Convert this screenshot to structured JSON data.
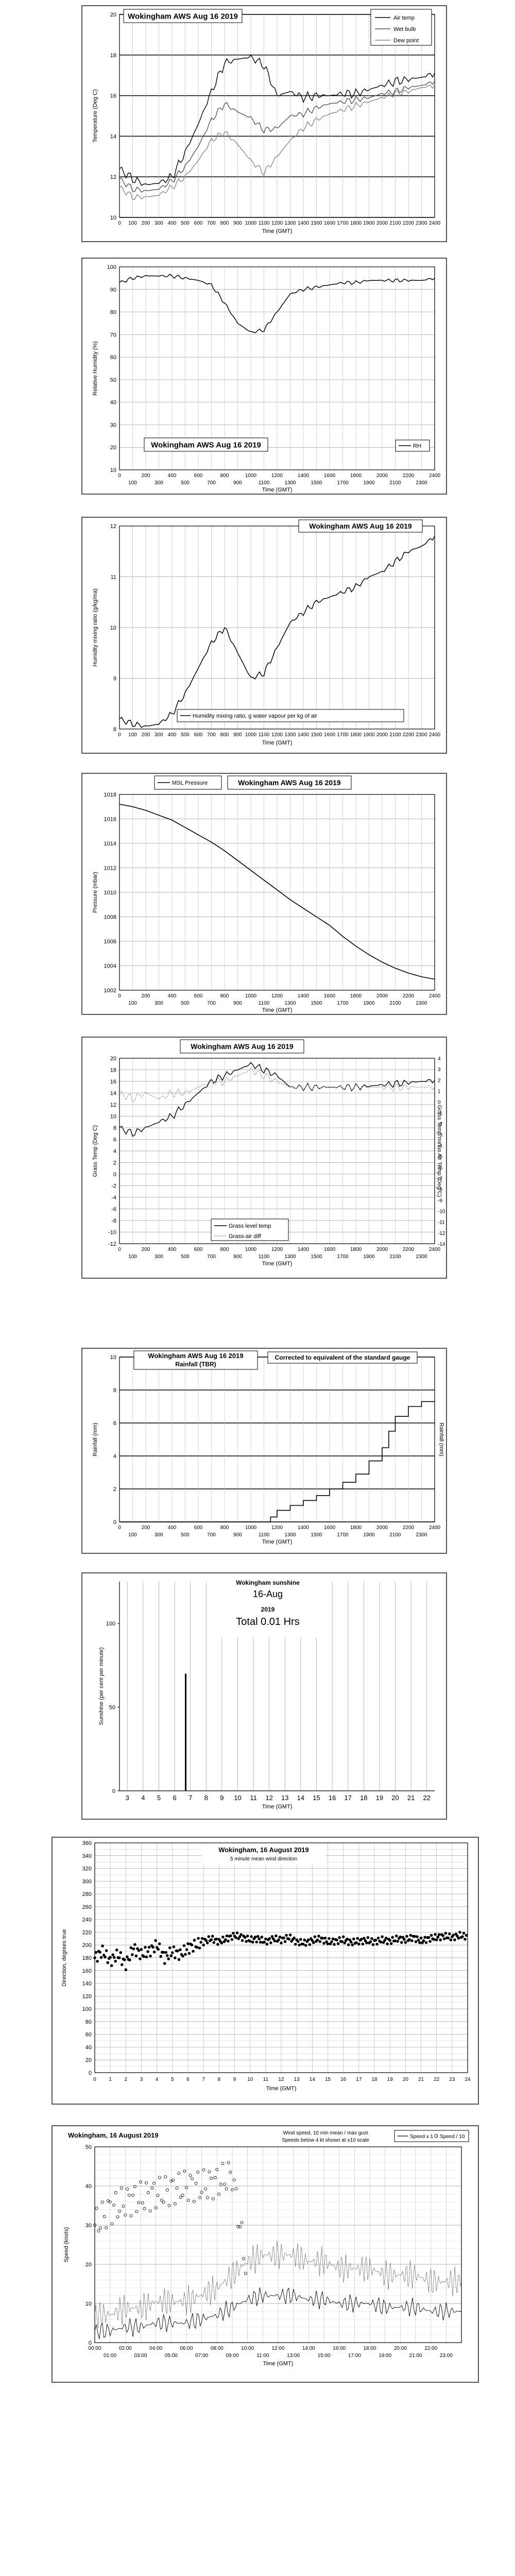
{
  "panels": [
    {
      "id": "temp",
      "title": "Wokingham AWS Aug 16 2019",
      "ylabel": "Temperature (Deg C)",
      "xlabel": "Time (GMT)",
      "yticks": [
        "10",
        "12",
        "14",
        "16",
        "18",
        "20"
      ],
      "xticks_top": [
        "0",
        "100",
        "200",
        "300",
        "400",
        "500",
        "600",
        "700",
        "800",
        "900",
        "1000",
        "1100",
        "1200",
        "1300",
        "1400",
        "1500",
        "1600",
        "1700",
        "1800",
        "1900",
        "2000",
        "2100",
        "2200",
        "2300",
        "2400"
      ],
      "legend": [
        "Air temp",
        "Wet bulb",
        "Dew point"
      ]
    },
    {
      "id": "rh",
      "title": "Wokingham AWS Aug 16 2019",
      "ylabel": "Relative Humidity (%)",
      "xlabel": "Time (GMT)",
      "yticks": [
        "10",
        "20",
        "30",
        "40",
        "50",
        "60",
        "70",
        "80",
        "90",
        "100"
      ],
      "xticks_top": [
        "0",
        "200",
        "400",
        "600",
        "800",
        "1000",
        "1200",
        "1400",
        "1600",
        "1800",
        "2000",
        "2200",
        "2400"
      ],
      "xticks_bottom": [
        "100",
        "300",
        "500",
        "700",
        "900",
        "1100",
        "1300",
        "1500",
        "1700",
        "1900",
        "2100",
        "2300"
      ],
      "legend": [
        "RH"
      ]
    },
    {
      "id": "hmr",
      "title": "Wokingham AWS Aug 16 2019",
      "ylabel": "Humidity mixing ratio (g/kg/ma)",
      "xlabel": "Time (GMT)",
      "yticks": [
        "8",
        "9",
        "10",
        "11",
        "12"
      ],
      "xticks_top": [
        "0",
        "100",
        "200",
        "300",
        "400",
        "500",
        "600",
        "700",
        "800",
        "900",
        "1000",
        "1100",
        "1200",
        "1300",
        "1400",
        "1500",
        "1600",
        "1700",
        "1800",
        "1900",
        "2000",
        "2100",
        "2200",
        "2300",
        "2400"
      ],
      "legend": [
        "Humidity mixing ratio, g water vapour per kg of air"
      ]
    },
    {
      "id": "press",
      "title": "Wokingham AWS Aug 16 2019",
      "ylabel": "Pressure (mbar)",
      "xlabel": "Time (GMT)",
      "yticks": [
        "1002",
        "1004",
        "1006",
        "1008",
        "1010",
        "1012",
        "1014",
        "1016",
        "1018"
      ],
      "xticks_top": [
        "0",
        "200",
        "400",
        "600",
        "800",
        "1000",
        "1200",
        "1400",
        "1600",
        "1800",
        "2000",
        "2200",
        "2400"
      ],
      "xticks_bottom": [
        "100",
        "300",
        "500",
        "700",
        "900",
        "1100",
        "1300",
        "1500",
        "1700",
        "1900",
        "2100",
        "2300"
      ],
      "legend": [
        "MSL Pressure"
      ]
    },
    {
      "id": "grass",
      "title": "Wokingham AWS Aug 16 2019",
      "ylabel": "Grass Temp (Deg C)",
      "ylabel_right": "Grass Temp minus Air Temp (Deg C)",
      "xlabel": "Time (GMT)",
      "yticks": [
        "-12",
        "-10",
        "-8",
        "-6",
        "-4",
        "-2",
        "0",
        "2",
        "4",
        "6",
        "8",
        "10",
        "12",
        "14",
        "16",
        "18",
        "20"
      ],
      "yticks_right": [
        "-14",
        "-12",
        "-11",
        "-10",
        "-9",
        "-8",
        "-7",
        "-6",
        "-5",
        "-4",
        "-3",
        "-2",
        "-1",
        "0",
        "1",
        "2",
        "3",
        "4"
      ],
      "xticks_top": [
        "0",
        "200",
        "400",
        "600",
        "800",
        "1000",
        "1200",
        "1400",
        "1600",
        "1800",
        "2000",
        "2200",
        "2400"
      ],
      "xticks_bottom": [
        "100",
        "300",
        "500",
        "700",
        "900",
        "1100",
        "1300",
        "1500",
        "1700",
        "1900",
        "2100",
        "2300"
      ],
      "legend": [
        "Grass level temp",
        "Grass-air diff"
      ]
    },
    {
      "id": "rain",
      "title": "Wokingham AWS Aug 16 2019",
      "subtitle": "Rainfall (TBR)",
      "note": "Corrected to equivalent of the standard gauge",
      "ylabel": "Rainfall (mm)",
      "ylabel_right": "Rainfall (mm)",
      "xlabel": "Time (GMT)",
      "yticks": [
        "0",
        "2",
        "4",
        "6",
        "8",
        "10"
      ],
      "xticks_top": [
        "0",
        "200",
        "400",
        "600",
        "800",
        "1000",
        "1200",
        "1400",
        "1600",
        "1800",
        "2000",
        "2200",
        "2400"
      ],
      "xticks_bottom": [
        "100",
        "300",
        "500",
        "700",
        "900",
        "1100",
        "1300",
        "1500",
        "1700",
        "1900",
        "2100",
        "2300"
      ]
    },
    {
      "id": "sun",
      "title": "Wokingham sunshine",
      "date": "16-Aug",
      "year": "2019",
      "total": "Total 0.01 Hrs",
      "ylabel": "Sunshine (per cent per minute)",
      "xlabel": "Time (GMT)",
      "yticks": [
        "0",
        "50",
        "100"
      ],
      "xticks": [
        "3",
        "4",
        "5",
        "6",
        "7",
        "8",
        "9",
        "10",
        "11",
        "12",
        "13",
        "14",
        "15",
        "16",
        "17",
        "18",
        "19",
        "20",
        "21",
        "22"
      ]
    },
    {
      "id": "wdir",
      "title": "Wokingham,   16 August 2019",
      "subtitle": "5 minute mean wind direction",
      "ylabel": "Direction, degrees true",
      "xlabel": "Time (GMT)",
      "yticks": [
        "0",
        "20",
        "40",
        "60",
        "80",
        "100",
        "120",
        "140",
        "160",
        "180",
        "200",
        "220",
        "240",
        "260",
        "280",
        "300",
        "320",
        "340",
        "360"
      ],
      "xticks": [
        "0",
        "1",
        "2",
        "3",
        "4",
        "5",
        "6",
        "7",
        "8",
        "9",
        "10",
        "11",
        "12",
        "13",
        "14",
        "15",
        "16",
        "17",
        "18",
        "19",
        "20",
        "21",
        "22",
        "23",
        "24"
      ]
    },
    {
      "id": "wspd",
      "title": "Wokingham,   16 August 2019",
      "subtitle": "Wind speed, 10 min mean / max gust",
      "subtitle2": "Speeds below 4 kt shown at x10 scale",
      "ylabel": "Speed (knots)",
      "xlabel": "Time (GMT)",
      "yticks": [
        "0",
        "10",
        "20",
        "30",
        "40",
        "50"
      ],
      "xticks_top": [
        "00:00",
        "02:00",
        "04:00",
        "06:00",
        "08:00",
        "10:00",
        "12:00",
        "14:00",
        "16:00",
        "18:00",
        "20:00",
        "22:00"
      ],
      "xticks_bottom": [
        "01:00",
        "03:00",
        "05:00",
        "07:00",
        "09:00",
        "11:00",
        "13:00",
        "15:00",
        "17:00",
        "19:00",
        "21:00",
        "23:00"
      ],
      "legend": [
        "Speed x 1",
        "Speed / 10"
      ]
    }
  ],
  "chart_data": [
    {
      "type": "line",
      "title": "Wokingham AWS Aug 16 2019",
      "xlabel": "Time (GMT)",
      "ylabel": "Temperature (Deg C)",
      "xlim": [
        0,
        2400
      ],
      "ylim": [
        10,
        20
      ],
      "x": [
        0,
        100,
        200,
        300,
        400,
        500,
        600,
        700,
        800,
        900,
        1000,
        1100,
        1200,
        1300,
        1400,
        1500,
        1600,
        1700,
        1800,
        1900,
        2000,
        2100,
        2200,
        2300,
        2400
      ],
      "series": [
        {
          "name": "Air temp",
          "values": [
            12.4,
            11.9,
            11.6,
            11.7,
            12.0,
            13.2,
            14.6,
            16.2,
            17.6,
            17.8,
            17.9,
            17.5,
            16.0,
            16.2,
            15.9,
            16.0,
            16.0,
            16.1,
            16.1,
            16.3,
            16.5,
            16.7,
            16.8,
            16.9,
            17.1
          ]
        },
        {
          "name": "Wet bulb",
          "values": [
            11.9,
            11.4,
            11.3,
            11.4,
            11.8,
            12.5,
            13.5,
            14.8,
            15.6,
            15.2,
            14.9,
            14.3,
            14.4,
            15.0,
            15.1,
            15.4,
            15.6,
            15.7,
            15.8,
            15.9,
            16.1,
            16.2,
            16.4,
            16.5,
            16.7
          ]
        },
        {
          "name": "Dew point",
          "values": [
            11.5,
            11.0,
            11.0,
            11.1,
            11.5,
            12.0,
            12.8,
            13.8,
            14.2,
            13.6,
            12.8,
            12.2,
            13.0,
            13.8,
            14.4,
            14.8,
            15.1,
            15.3,
            15.5,
            15.7,
            15.9,
            16.1,
            16.2,
            16.4,
            16.5
          ]
        }
      ]
    },
    {
      "type": "line",
      "title": "Wokingham AWS Aug 16 2019",
      "xlabel": "Time (GMT)",
      "ylabel": "Relative Humidity (%)",
      "xlim": [
        0,
        2400
      ],
      "ylim": [
        10,
        100
      ],
      "x": [
        0,
        100,
        200,
        300,
        400,
        500,
        600,
        700,
        800,
        900,
        1000,
        1100,
        1200,
        1300,
        1400,
        1500,
        1600,
        1700,
        1800,
        1900,
        2000,
        2100,
        2200,
        2300,
        2400
      ],
      "series": [
        {
          "name": "RH",
          "values": [
            93,
            95,
            96,
            96,
            96,
            95,
            94,
            92,
            84,
            75,
            71,
            72,
            80,
            88,
            90,
            91,
            92,
            93,
            93,
            94,
            94,
            94,
            94,
            94,
            95
          ]
        }
      ]
    },
    {
      "type": "line",
      "title": "Wokingham AWS Aug 16 2019",
      "xlabel": "Time (GMT)",
      "ylabel": "Humidity mixing ratio (g/kg/ma)",
      "xlim": [
        0,
        2400
      ],
      "ylim": [
        8,
        12
      ],
      "x": [
        0,
        100,
        200,
        300,
        400,
        500,
        600,
        700,
        800,
        900,
        1000,
        1100,
        1200,
        1300,
        1400,
        1500,
        1600,
        1700,
        1800,
        1900,
        2000,
        2100,
        2200,
        2300,
        2400
      ],
      "series": [
        {
          "name": "Humidity mixing ratio, g water vapour per kg of air",
          "values": [
            8.2,
            8.1,
            8.05,
            8.1,
            8.3,
            8.7,
            9.2,
            9.7,
            10.0,
            9.5,
            9.0,
            9.1,
            9.6,
            10.1,
            10.3,
            10.5,
            10.6,
            10.7,
            10.8,
            11.0,
            11.1,
            11.3,
            11.5,
            11.6,
            11.8
          ]
        }
      ]
    },
    {
      "type": "line",
      "title": "Wokingham AWS Aug 16 2019",
      "xlabel": "Time (GMT)",
      "ylabel": "Pressure (mbar)",
      "xlim": [
        0,
        2400
      ],
      "ylim": [
        1002,
        1018
      ],
      "x": [
        0,
        100,
        200,
        300,
        400,
        500,
        600,
        700,
        800,
        900,
        1000,
        1100,
        1200,
        1300,
        1400,
        1500,
        1600,
        1700,
        1800,
        1900,
        2000,
        2100,
        2200,
        2300,
        2400
      ],
      "series": [
        {
          "name": "MSL Pressure",
          "values": [
            1017.2,
            1017.0,
            1016.7,
            1016.3,
            1015.9,
            1015.3,
            1014.7,
            1014.1,
            1013.4,
            1012.6,
            1011.8,
            1011.0,
            1010.2,
            1009.4,
            1008.7,
            1008.0,
            1007.3,
            1006.4,
            1005.6,
            1004.9,
            1004.3,
            1003.8,
            1003.4,
            1003.1,
            1002.9
          ]
        }
      ]
    },
    {
      "type": "line",
      "title": "Wokingham AWS Aug 16 2019",
      "xlabel": "Time (GMT)",
      "ylabel": "Grass Temp (Deg C)",
      "xlim": [
        0,
        2400
      ],
      "ylim": [
        -12,
        20
      ],
      "x": [
        0,
        100,
        200,
        300,
        400,
        500,
        600,
        700,
        800,
        900,
        1000,
        1100,
        1200,
        1300,
        1400,
        1500,
        1600,
        1700,
        1800,
        1900,
        2000,
        2100,
        2200,
        2300,
        2400
      ],
      "series": [
        {
          "name": "Grass level temp",
          "values": [
            8,
            7,
            8,
            9,
            10,
            12,
            14,
            16,
            17,
            18,
            19,
            18,
            17,
            15,
            15,
            15,
            15,
            15,
            15,
            15.2,
            15.4,
            15.6,
            15.8,
            16,
            16.2
          ]
        },
        {
          "name": "Grass-air diff",
          "values": [
            -1,
            -2,
            -1,
            -2,
            -1,
            -1,
            0,
            1,
            1,
            2,
            3,
            2,
            1,
            0,
            0,
            0,
            0,
            0,
            0,
            0,
            0,
            0,
            0,
            0,
            0
          ]
        }
      ]
    },
    {
      "type": "line",
      "title": "Wokingham AWS Aug 16 2019",
      "xlabel": "Time (GMT)",
      "ylabel": "Rainfall (mm)",
      "xlim": [
        0,
        2400
      ],
      "ylim": [
        0,
        10
      ],
      "x": [
        0,
        1100,
        1150,
        1200,
        1300,
        1400,
        1500,
        1600,
        1700,
        1800,
        1900,
        2000,
        2050,
        2100,
        2200,
        2300,
        2400
      ],
      "series": [
        {
          "name": "Rainfall (TBR)",
          "values": [
            0,
            0,
            0.3,
            0.7,
            1.0,
            1.3,
            1.6,
            2.0,
            2.4,
            2.9,
            3.7,
            4.5,
            5.5,
            6.4,
            7.0,
            7.3,
            7.3
          ]
        }
      ]
    },
    {
      "type": "bar",
      "title": "Wokingham sunshine",
      "xlabel": "Time (GMT)",
      "ylabel": "Sunshine (per cent per minute)",
      "xlim": [
        2.5,
        22.5
      ],
      "ylim": [
        0,
        125
      ],
      "x": [
        6.7
      ],
      "values": [
        70
      ]
    },
    {
      "type": "scatter",
      "title": "Wokingham,   16 August 2019",
      "xlabel": "Time (GMT)",
      "ylabel": "Direction, degrees true",
      "xlim": [
        0,
        24
      ],
      "ylim": [
        0,
        360
      ],
      "x": [
        0,
        0.5,
        1,
        1.5,
        2,
        2.5,
        3,
        3.5,
        4,
        4.5,
        5,
        5.5,
        6,
        6.5,
        7,
        7.5,
        8,
        8.5,
        9,
        9.5,
        10,
        10.5,
        11,
        11.5,
        12,
        12.5,
        13,
        13.5,
        14,
        14.5,
        15,
        15.5,
        16,
        16.5,
        17,
        17.5,
        18,
        18.5,
        19,
        19.5,
        20,
        20.5,
        21,
        21.5,
        22,
        22.5,
        23,
        23.5,
        24
      ],
      "values": [
        180,
        190,
        175,
        185,
        170,
        195,
        185,
        190,
        200,
        180,
        190,
        185,
        195,
        200,
        205,
        210,
        205,
        210,
        215,
        212,
        208,
        210,
        205,
        210,
        208,
        212,
        205,
        203,
        207,
        210,
        205,
        206,
        208,
        204,
        206,
        207,
        205,
        208,
        206,
        210,
        208,
        212,
        206,
        210,
        212,
        214,
        212,
        215,
        213
      ]
    },
    {
      "type": "line",
      "title": "Wokingham,   16 August 2019",
      "xlabel": "Time (GMT)",
      "ylabel": "Speed (knots)",
      "xlim": [
        0,
        24
      ],
      "ylim": [
        0,
        50
      ],
      "x": [
        0,
        1,
        2,
        3,
        4,
        5,
        6,
        7,
        8,
        9,
        10,
        11,
        12,
        13,
        14,
        15,
        16,
        17,
        18,
        19,
        20,
        21,
        22,
        23,
        24
      ],
      "series": [
        {
          "name": "Speed x 1",
          "values": [
            3,
            3,
            4,
            4,
            5,
            5,
            5,
            6,
            7,
            9,
            11,
            12,
            12,
            12,
            11,
            11,
            10,
            10,
            10,
            9,
            9,
            9,
            8,
            8,
            8
          ]
        },
        {
          "name": "Speed / 10",
          "values": [
            30,
            34,
            36,
            37,
            38,
            39,
            40,
            40,
            41,
            43,
            17,
            19,
            20,
            18,
            17,
            17,
            17,
            16,
            15,
            15,
            14,
            14,
            13,
            13,
            12
          ]
        }
      ]
    }
  ]
}
